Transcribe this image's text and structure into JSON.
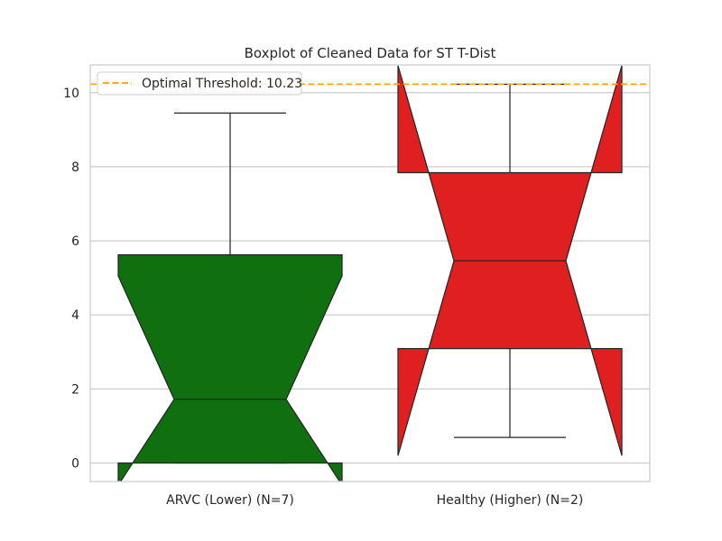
{
  "chart_data": {
    "type": "boxplot",
    "notched": true,
    "title": "Boxplot of Cleaned Data for ST T-Dist",
    "xlabel": "",
    "ylabel": "",
    "ylim": [
      -0.5,
      10.75
    ],
    "yticks": [
      0,
      2,
      4,
      6,
      8,
      10
    ],
    "grid": true,
    "legend": {
      "placement": "top-left",
      "entries": [
        {
          "label": "Optimal Threshold: 10.23",
          "style": "dashed-line",
          "color": "#ffa500"
        }
      ]
    },
    "threshold": 10.23,
    "series": [
      {
        "name": "ARVC (Lower) (N=7)",
        "color": "#107010",
        "q1": 0.0,
        "median": 1.72,
        "q3": 5.62,
        "whisker_low": 0.0,
        "whisker_high": 9.45,
        "notch_low": -0.6,
        "notch_high": 5.05
      },
      {
        "name": "Healthy (Higher) (N=2)",
        "color": "#e02020",
        "q1": 3.09,
        "median": 5.46,
        "q3": 7.84,
        "whisker_low": 0.69,
        "whisker_high": 10.23,
        "notch_low": 0.2,
        "notch_high": 10.73
      }
    ]
  }
}
